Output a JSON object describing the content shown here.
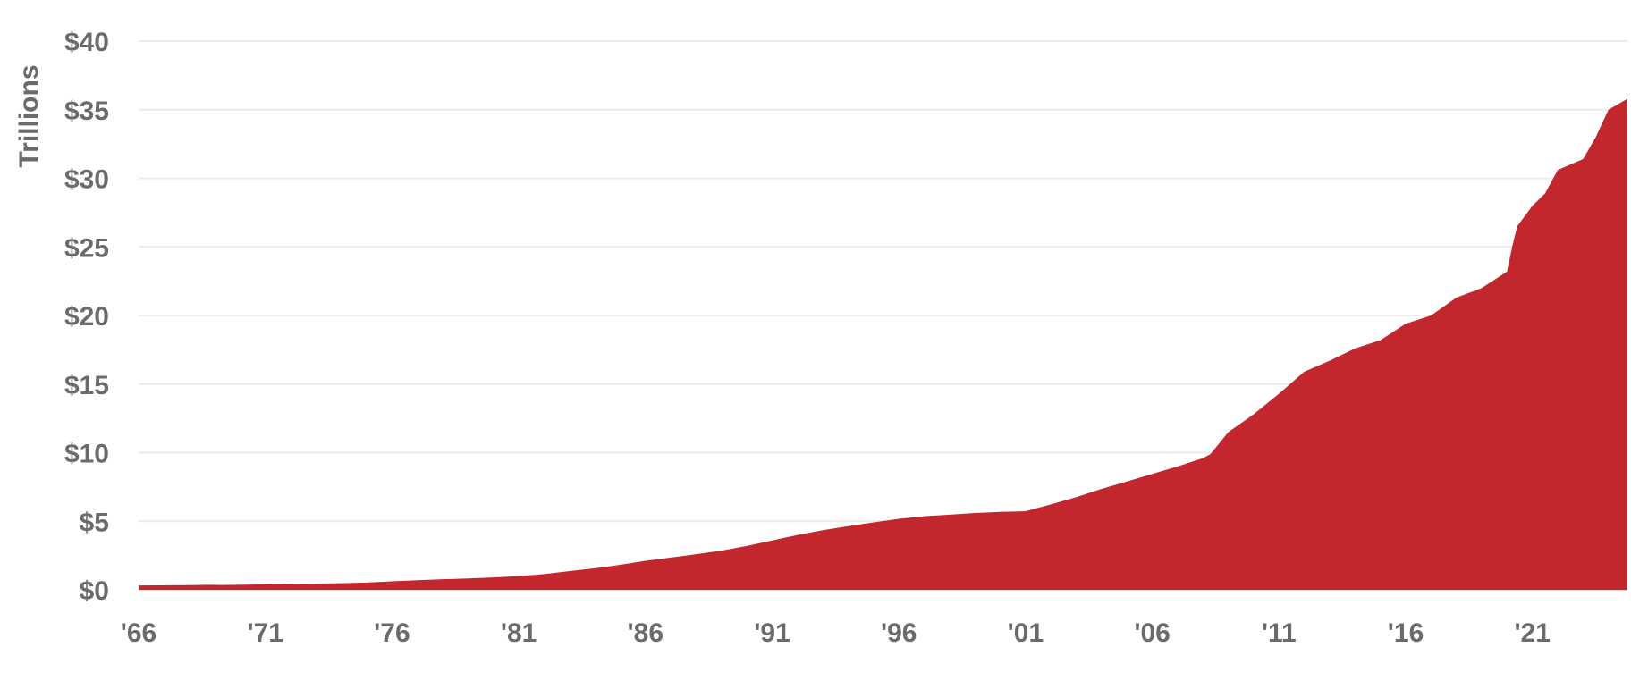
{
  "chart_data": {
    "type": "area",
    "ylabel": "Trillions",
    "ylim": [
      0,
      40
    ],
    "yticks": [
      0,
      5,
      10,
      15,
      20,
      25,
      30,
      35,
      40
    ],
    "ytick_labels": [
      "$0",
      "$5",
      "$10",
      "$15",
      "$20",
      "$25",
      "$30",
      "$35",
      "$40"
    ],
    "xlim": [
      1966,
      2024.75
    ],
    "xticks": [
      1966,
      1971,
      1976,
      1981,
      1986,
      1991,
      1996,
      2001,
      2006,
      2011,
      2016,
      2021
    ],
    "xtick_labels": [
      "'66",
      "'71",
      "'76",
      "'81",
      "'86",
      "'91",
      "'96",
      "'01",
      "'06",
      "'11",
      "'16",
      "'21"
    ],
    "grid": true,
    "legend": "none",
    "colors": {
      "fill": "#c1272d",
      "grid": "#ebebeb",
      "text": "#6b6b6b"
    },
    "series": [
      {
        "x": [
          1966,
          1968,
          1968.8,
          1969.3,
          1970,
          1971,
          1972,
          1973,
          1974,
          1975,
          1976,
          1977,
          1978,
          1979,
          1980,
          1981,
          1982,
          1983,
          1984,
          1985,
          1986,
          1987,
          1988,
          1989,
          1990,
          1991,
          1992,
          1993,
          1994,
          1995,
          1996,
          1997,
          1998,
          1999,
          2000,
          2001,
          2002,
          2003,
          2004,
          2005,
          2006,
          2007,
          2008,
          2008.3,
          2009,
          2010,
          2011,
          2012,
          2013,
          2014,
          2015,
          2016,
          2017,
          2018,
          2019,
          2020,
          2020.2,
          2020.4,
          2021,
          2021.5,
          2022,
          2023,
          2023.5,
          2024,
          2024.75
        ],
        "values": [
          0.32,
          0.34,
          0.37,
          0.35,
          0.37,
          0.4,
          0.43,
          0.46,
          0.48,
          0.53,
          0.62,
          0.7,
          0.77,
          0.83,
          0.9,
          1.0,
          1.15,
          1.37,
          1.57,
          1.82,
          2.12,
          2.35,
          2.6,
          2.86,
          3.2,
          3.6,
          4.0,
          4.35,
          4.64,
          4.92,
          5.18,
          5.37,
          5.48,
          5.6,
          5.68,
          5.73,
          6.23,
          6.76,
          7.36,
          7.9,
          8.45,
          9.0,
          9.6,
          9.9,
          11.5,
          12.8,
          14.3,
          15.9,
          16.7,
          17.6,
          18.2,
          19.4,
          20.0,
          21.3,
          22.0,
          23.2,
          25.0,
          26.5,
          28.0,
          28.9,
          30.6,
          31.4,
          33.0,
          35.0,
          35.8
        ]
      }
    ]
  }
}
